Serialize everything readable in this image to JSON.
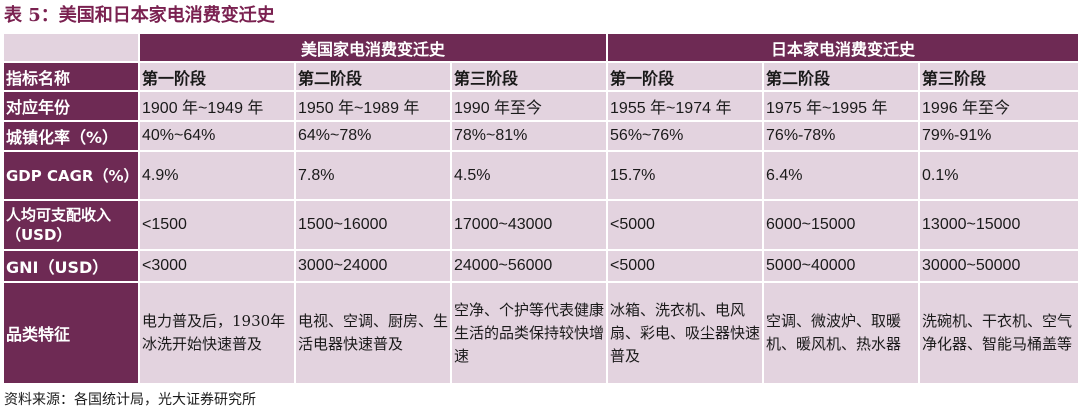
{
  "title": "表 5：美国和日本家电消费变迁史",
  "groups": {
    "us": "美国家电消费变迁史",
    "jp": "日本家电消费变迁史"
  },
  "stage_header": {
    "label": "指标名称",
    "stages": [
      "第一阶段",
      "第二阶段",
      "第三阶段",
      "第一阶段",
      "第二阶段",
      "第三阶段"
    ]
  },
  "rows": [
    {
      "label": "对应年份",
      "values": [
        "1900 年~1949 年",
        "1950 年~1989 年",
        "1990 年至今",
        "1955 年~1974 年",
        "1975 年~1995 年",
        "1996 年至今"
      ]
    },
    {
      "label": "城镇化率（%）",
      "values": [
        "40%~64%",
        "64%~78%",
        "78%~81%",
        "56%~76%",
        "76%-78%",
        "79%-91%"
      ]
    },
    {
      "label": "GDP CAGR（%）",
      "values": [
        "4.9%",
        "7.8%",
        "4.5%",
        "15.7%",
        "6.4%",
        "0.1%"
      ]
    },
    {
      "label": "人均可支配收入（USD）",
      "values": [
        "<1500",
        "1500~16000",
        "17000~43000",
        "<5000",
        "6000~15000",
        "13000~15000"
      ]
    },
    {
      "label": "GNI（USD）",
      "values": [
        "<3000",
        "3000~24000",
        "24000~56000",
        "<5000",
        "5000~40000",
        "30000~50000"
      ]
    },
    {
      "label": "品类特征",
      "values": [
        "电力普及后，1930年冰洗开始快速普及",
        "电视、空调、厨房、生活电器快速普及",
        "空净、个护等代表健康生活的品类保持较快增速",
        "冰箱、洗衣机、电风扇、彩电、吸尘器快速普及",
        "空调、微波炉、取暖机、暖风机、热水器",
        "洗碗机、干衣机、空气净化器、智能马桶盖等"
      ]
    }
  ],
  "source": "资料来源：各国统计局，光大证券研究所"
}
